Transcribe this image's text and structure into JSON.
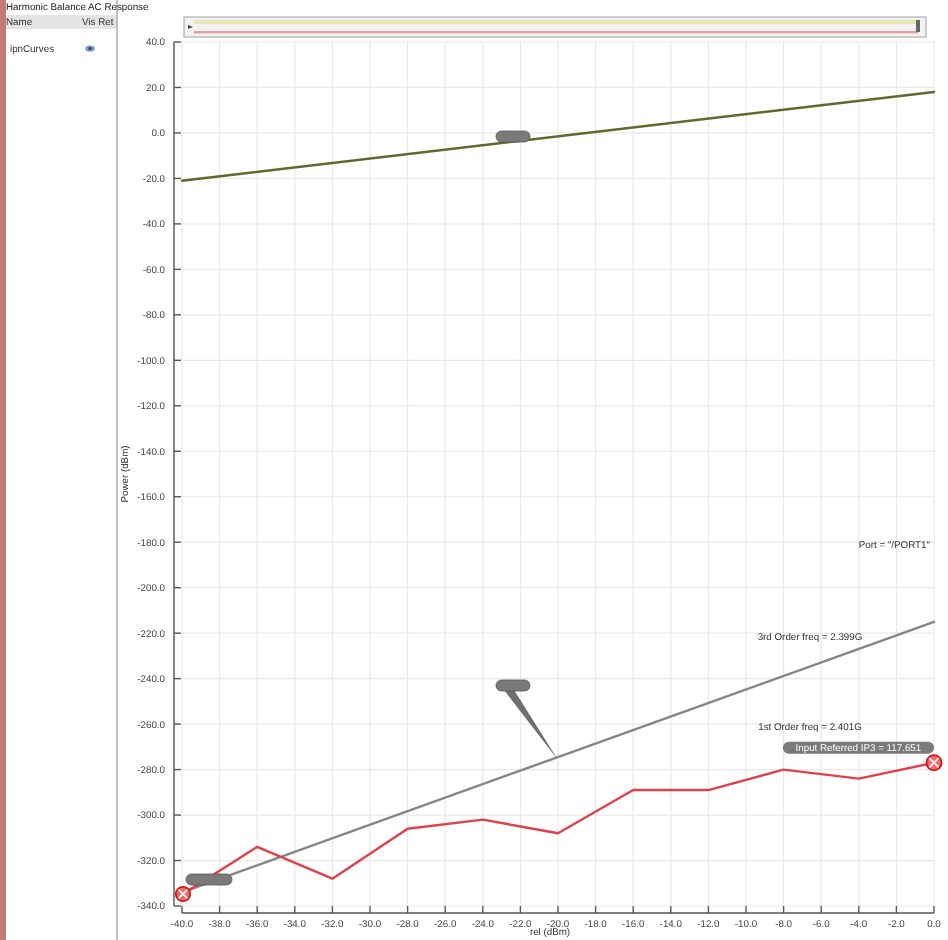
{
  "chart_data": {
    "type": "line",
    "title": "Harmonic Balance AC Response",
    "xlabel": "rel (dBm)",
    "ylabel": "Power (dBm)",
    "xlim": [
      -40,
      0
    ],
    "xticks": [
      {
        "value": -40,
        "label": "-40.0"
      },
      {
        "value": -38,
        "label": "-38.0"
      },
      {
        "value": -36,
        "label": "-36.0"
      },
      {
        "value": -34,
        "label": "-34.0"
      },
      {
        "value": -32,
        "label": "-32.0"
      },
      {
        "value": -30,
        "label": "-30.0"
      },
      {
        "value": -28,
        "label": "-28.0"
      },
      {
        "value": -26,
        "label": "-26.0"
      },
      {
        "value": -24,
        "label": "-24.0"
      },
      {
        "value": -22,
        "label": "-22.0"
      },
      {
        "value": -20,
        "label": "-20.0"
      },
      {
        "value": -18,
        "label": "-18.0"
      },
      {
        "value": -16,
        "label": "-16.0"
      },
      {
        "value": -14,
        "label": "-14.0"
      },
      {
        "value": -12,
        "label": "-12.0"
      },
      {
        "value": -10,
        "label": "-10.0"
      },
      {
        "value": -8,
        "label": "-8.0"
      },
      {
        "value": -6,
        "label": "-6.0"
      },
      {
        "value": -4,
        "label": "-4.0"
      },
      {
        "value": -2,
        "label": "-2.0"
      },
      {
        "value": 0,
        "label": "0.0"
      }
    ],
    "ylim": [
      -340,
      40
    ],
    "yticks": [
      {
        "value": 40,
        "label": "40.0"
      },
      {
        "value": 20,
        "label": "20.0"
      },
      {
        "value": 0,
        "label": "0.0"
      },
      {
        "value": -20,
        "label": "-20.0"
      },
      {
        "value": -40,
        "label": "-40.0"
      },
      {
        "value": -60,
        "label": "-60.0"
      },
      {
        "value": -80,
        "label": "-80.0"
      },
      {
        "value": -100,
        "label": "-100.0"
      },
      {
        "value": -120,
        "label": "-120.0"
      },
      {
        "value": -140,
        "label": "-140.0"
      },
      {
        "value": -160,
        "label": "-160.0"
      },
      {
        "value": -180,
        "label": "-180.0"
      },
      {
        "value": -200,
        "label": "-200.0"
      },
      {
        "value": -220,
        "label": "-220.0"
      },
      {
        "value": -240,
        "label": "-240.0"
      },
      {
        "value": -260,
        "label": "-260.0"
      },
      {
        "value": -280,
        "label": "-280.0"
      },
      {
        "value": -300,
        "label": "-300.0"
      },
      {
        "value": -320,
        "label": "-320.0"
      },
      {
        "value": -340,
        "label": "-340.0"
      }
    ],
    "grid": true,
    "series": [
      {
        "color": "#66662c",
        "x": [
          -40,
          0
        ],
        "values": [
          -21,
          18
        ]
      },
      {
        "color": "#858585",
        "x": [
          -40,
          0
        ],
        "values": [
          -334,
          -215
        ]
      },
      {
        "color": "#e0404a",
        "x": [
          -40,
          -36,
          -32,
          -28,
          -24,
          -20,
          -16,
          -12,
          -8,
          -4,
          0
        ],
        "values": [
          -335,
          -314,
          -328,
          -306,
          -302,
          -308,
          -289,
          -289,
          -280,
          -284,
          -277
        ]
      }
    ],
    "annotations": [
      "Name",
      "Vis Ret",
      "ipnCurves",
      "Port = \"/PORT1\"",
      "3rd Order freq = 2.399G",
      "1st Order freq = 2.401G",
      {
        "text": "Input Referred IP3 = 117.651",
        "x": 0,
        "y": -277
      }
    ]
  }
}
